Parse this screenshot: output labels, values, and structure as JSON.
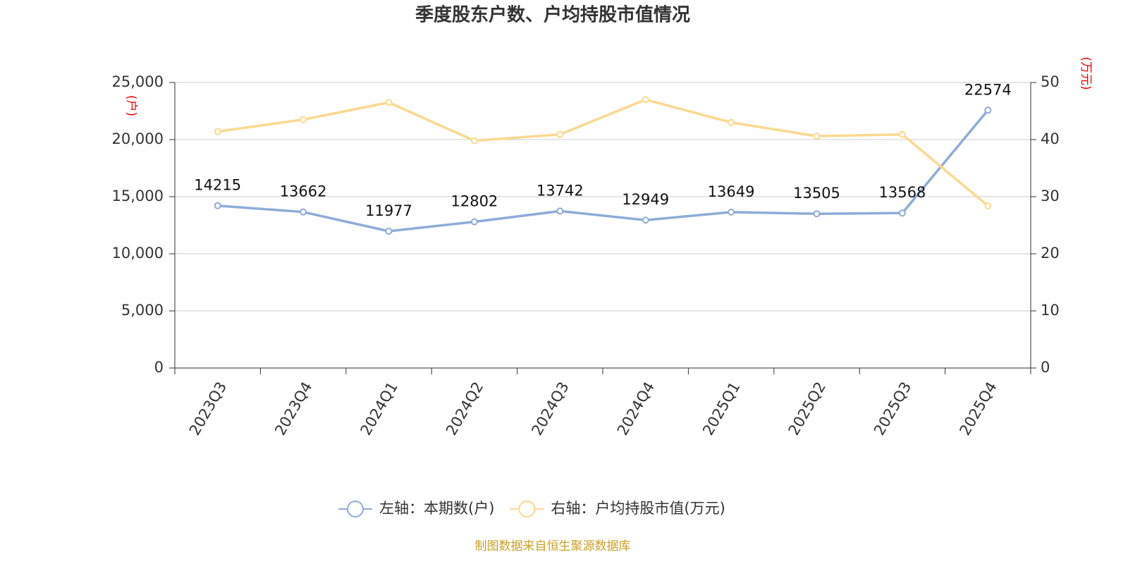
{
  "chart_data": {
    "type": "line",
    "title": "季度股东户数、户均持股市值情况",
    "categories": [
      "2023Q3",
      "2023Q4",
      "2024Q1",
      "2024Q2",
      "2024Q3",
      "2024Q4",
      "2025Q1",
      "2025Q2",
      "2025Q3",
      "2025Q4"
    ],
    "series": [
      {
        "name": "左轴：本期数(户)",
        "color": "#8eacd8",
        "axis": "y",
        "data_labels": true,
        "values": [
          14215,
          13662,
          11977,
          12802,
          13742,
          12949,
          13649,
          13505,
          13568,
          22574
        ]
      },
      {
        "name": "右轴：户均持股市值(万元)",
        "color": "#fbd98e",
        "axis": "y2",
        "data_labels": false,
        "values": [
          41.4,
          43.5,
          46.5,
          39.8,
          40.9,
          47.0,
          43.0,
          40.6,
          40.9,
          28.4
        ]
      }
    ],
    "ylabel": "(户)",
    "y2label": "(万元)",
    "ylim": [
      0,
      25000
    ],
    "yticks": [
      0,
      {
        "value": 5000,
        "label": "5,000"
      },
      {
        "value": 10000,
        "label": "10,000"
      },
      {
        "value": 15000,
        "label": "15,000"
      },
      {
        "value": 20000,
        "label": "20,000"
      },
      {
        "value": 25000,
        "label": "25,000"
      }
    ],
    "y2lim": [
      0,
      50
    ],
    "y2ticks": [
      0,
      10,
      20,
      30,
      40,
      50
    ],
    "grid": true,
    "legend": "bottom",
    "source": "制图数据来自恒生聚源数据库"
  }
}
